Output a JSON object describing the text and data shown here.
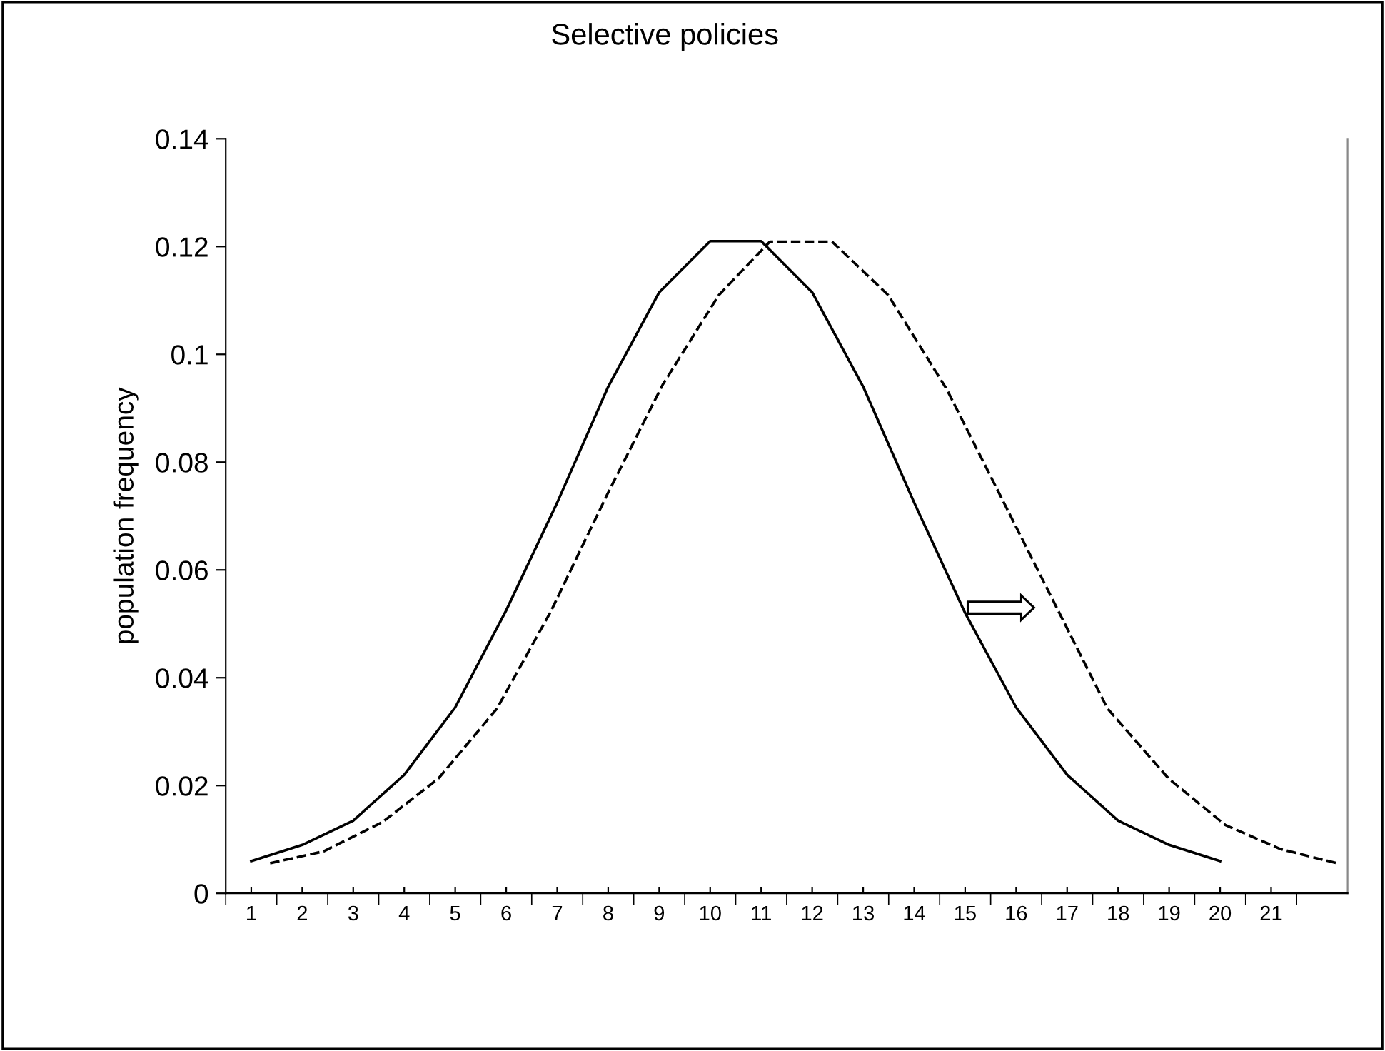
{
  "chart_data": {
    "type": "line",
    "title": "Selective policies",
    "ylabel": "population frequency",
    "series": [
      {
        "color": "#000000",
        "line_style": "solid",
        "x": [
          1,
          2,
          3,
          4,
          5,
          6,
          7,
          8,
          9,
          10,
          11,
          12,
          13,
          14,
          15,
          16,
          17,
          18,
          19,
          20
        ],
        "values": [
          0.006,
          0.009,
          0.0135,
          0.022,
          0.0345,
          0.0525,
          0.0725,
          0.094,
          0.1115,
          0.121,
          0.121,
          0.1115,
          0.094,
          0.0725,
          0.052,
          0.0345,
          0.022,
          0.0135,
          0.009,
          0.006
        ]
      },
      {
        "color": "#000000",
        "line_style": "dashed",
        "x": [
          1.37,
          2.42,
          3.57,
          4.67,
          5.82,
          6.87,
          7.97,
          9.07,
          10.17,
          11.17,
          12.39,
          13.49,
          14.64,
          15.69,
          16.79,
          17.79,
          18.99,
          20.1,
          21.19,
          22.29
        ],
        "values": [
          0.0056,
          0.0078,
          0.0132,
          0.0213,
          0.0343,
          0.0522,
          0.0738,
          0.0944,
          0.111,
          0.1209,
          0.1209,
          0.111,
          0.0935,
          0.0738,
          0.0531,
          0.0343,
          0.0213,
          0.0127,
          0.0082,
          0.0056
        ]
      }
    ],
    "xlim": [
      0.5,
      22.5
    ],
    "xticks": [
      1,
      2,
      3,
      4,
      5,
      6,
      7,
      8,
      9,
      10,
      11,
      12,
      13,
      14,
      15,
      16,
      17,
      18,
      19,
      20,
      21
    ],
    "ylim": [
      0,
      0.14
    ],
    "yticks": [
      0,
      0.02,
      0.04,
      0.06,
      0.08,
      0.1,
      0.12,
      0.14
    ],
    "grid": false,
    "legend": false,
    "marker": "none"
  }
}
